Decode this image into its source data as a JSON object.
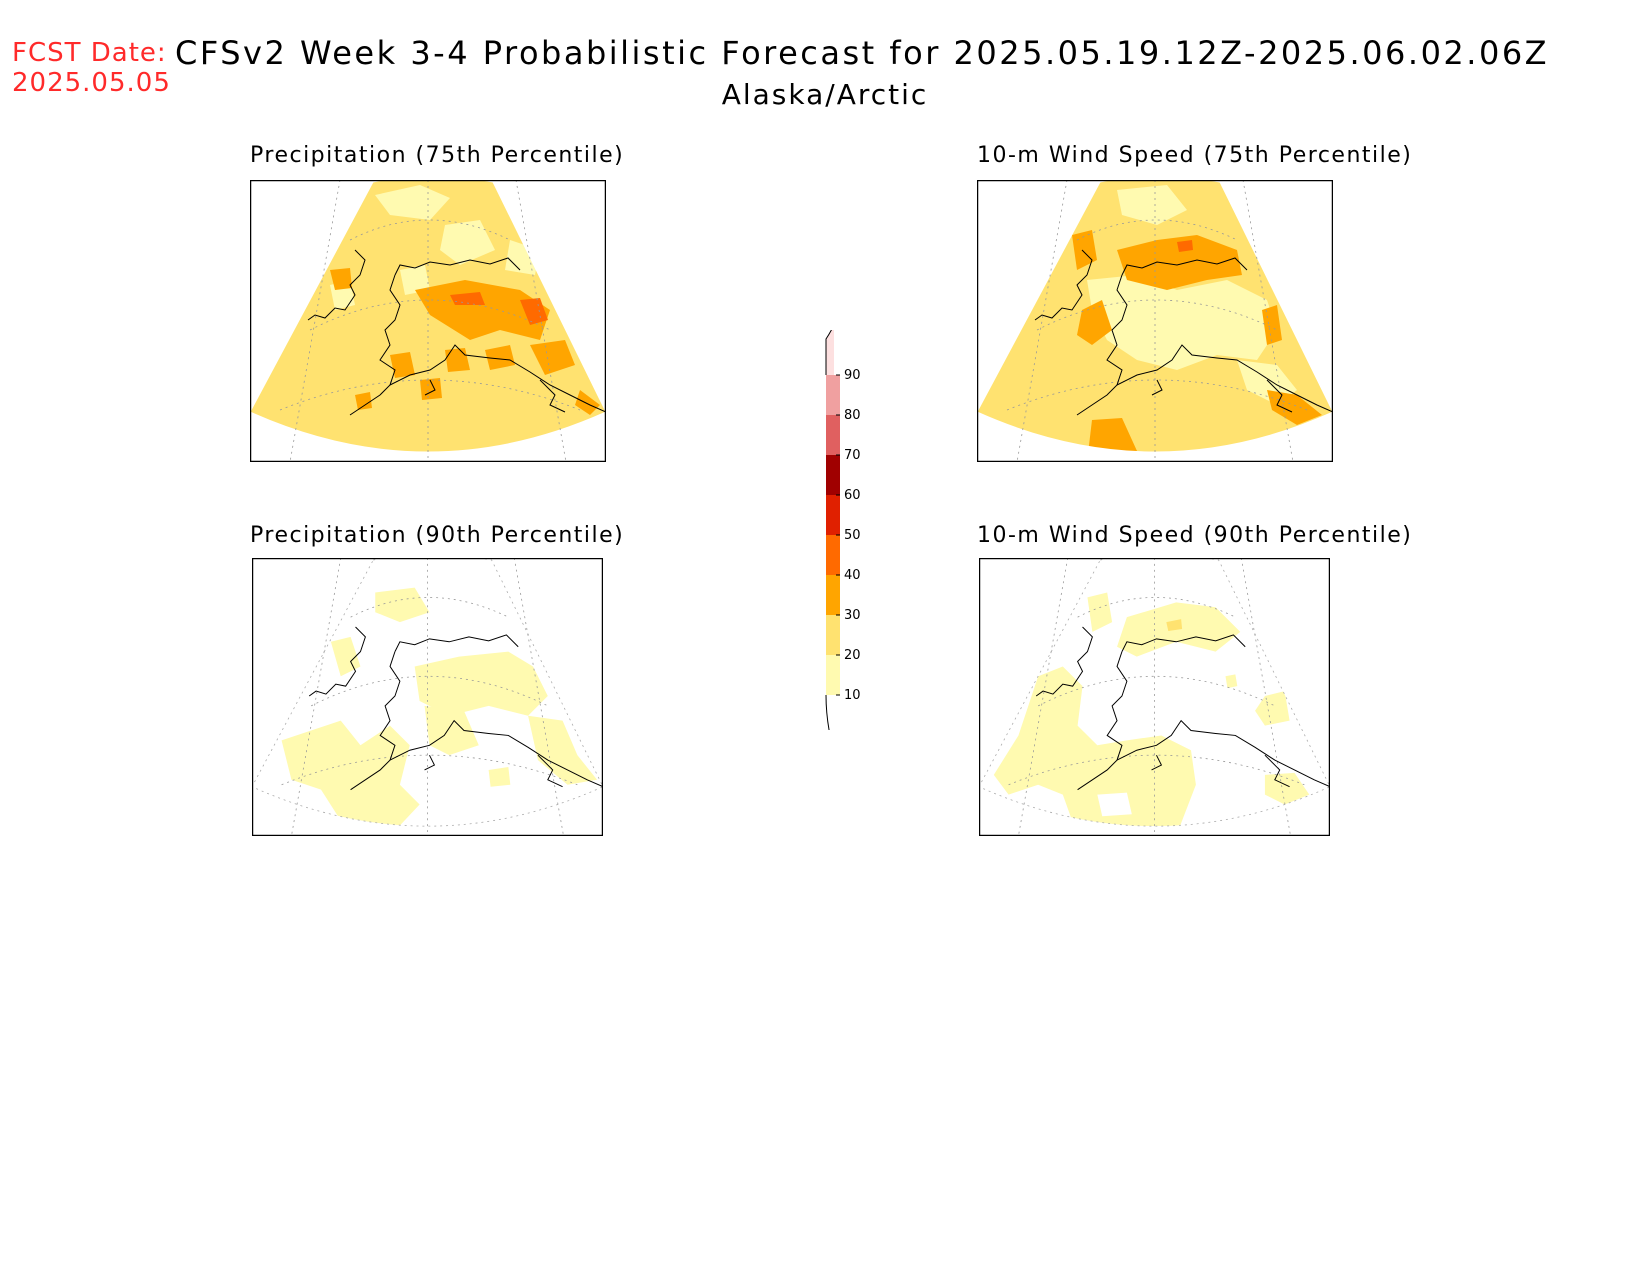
{
  "header": {
    "fcst_label": "FCST Date:",
    "fcst_date": "2025.05.05",
    "title": "CFSv2 Week 3-4 Probabilistic Forecast for 2025.05.19.12Z-2025.06.02.06Z",
    "region": "Alaska/Arctic"
  },
  "panels": [
    {
      "title": "Precipitation (75th Percentile)"
    },
    {
      "title": "10-m Wind Speed (75th Percentile)"
    },
    {
      "title": "Precipitation (90th Percentile)"
    },
    {
      "title": "10-m Wind Speed (90th Percentile)"
    }
  ],
  "colorbar": {
    "levels": [
      "10",
      "20",
      "30",
      "40",
      "50",
      "60",
      "70",
      "80",
      "90"
    ],
    "colors": [
      "#fffab0",
      "#ffe270",
      "#ffa500",
      "#ff6a00",
      "#e02000",
      "#a00000",
      "#e06060",
      "#f0a0a0",
      "#fde0e0"
    ]
  }
}
